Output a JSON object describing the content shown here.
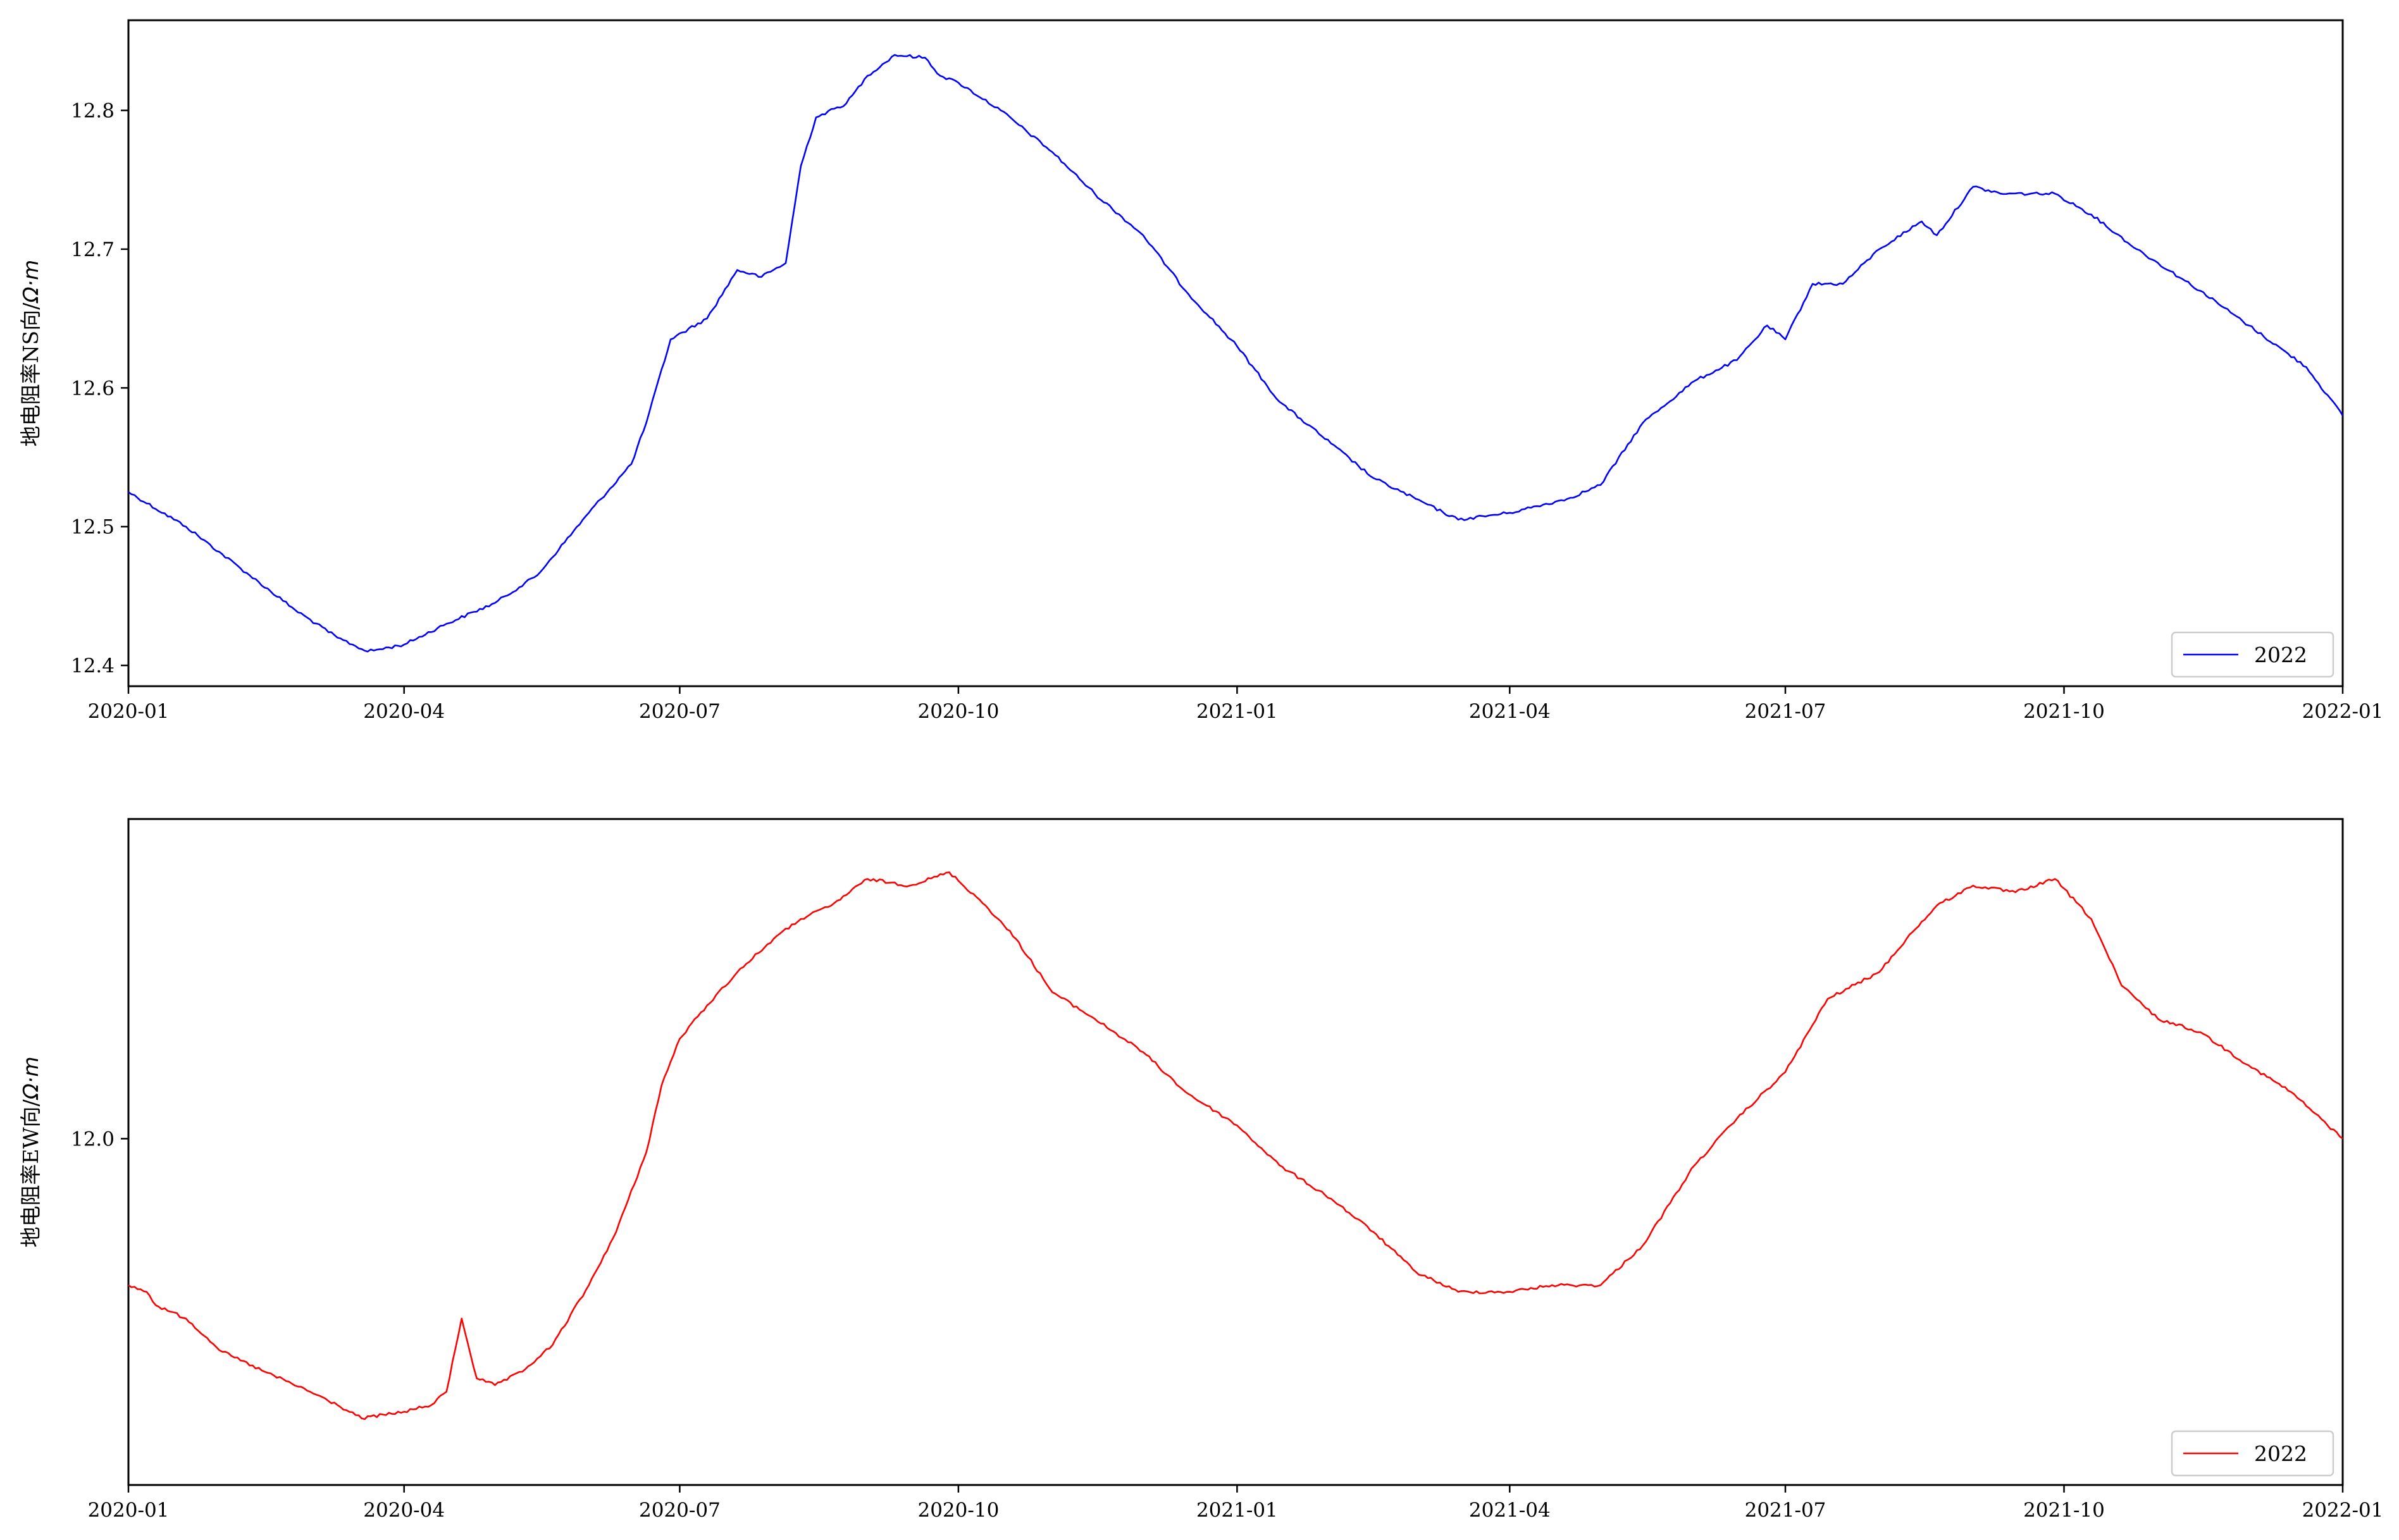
{
  "chart_data": [
    {
      "type": "line",
      "ylabel_text": "地电阻率NS向/",
      "ylabel_unit": "Ω·m",
      "x_ticks": [
        "2020-01",
        "2020-04",
        "2020-07",
        "2020-10",
        "2021-01",
        "2021-04",
        "2021-07",
        "2021-10",
        "2022-01"
      ],
      "y_ticks": [
        "12.4",
        "12.5",
        "12.6",
        "12.7",
        "12.8"
      ],
      "ylim": [
        12.385,
        12.865
      ],
      "legend": {
        "label": "2022",
        "position": "lower-right"
      },
      "series": [
        {
          "name": "2022",
          "color": "#0000ff",
          "x": [
            "2020-01-01",
            "2020-01-20",
            "2020-02-10",
            "2020-02-25",
            "2020-03-10",
            "2020-03-20",
            "2020-04-01",
            "2020-04-15",
            "2020-05-01",
            "2020-05-15",
            "2020-06-01",
            "2020-06-15",
            "2020-06-20",
            "2020-06-28",
            "2020-07-10",
            "2020-07-20",
            "2020-07-28",
            "2020-08-05",
            "2020-08-10",
            "2020-08-15",
            "2020-08-25",
            "2020-09-01",
            "2020-09-10",
            "2020-09-20",
            "2020-09-25",
            "2020-10-01",
            "2020-10-15",
            "2020-11-01",
            "2020-11-15",
            "2020-12-01",
            "2020-12-15",
            "2021-01-01",
            "2021-01-15",
            "2021-02-01",
            "2021-02-15",
            "2021-03-01",
            "2021-03-15",
            "2021-04-01",
            "2021-04-20",
            "2021-05-01",
            "2021-05-15",
            "2021-06-01",
            "2021-06-15",
            "2021-06-25",
            "2021-07-01",
            "2021-07-10",
            "2021-07-20",
            "2021-08-01",
            "2021-08-15",
            "2021-08-20",
            "2021-09-01",
            "2021-09-10",
            "2021-09-20",
            "2021-09-28",
            "2021-10-10",
            "2021-10-25",
            "2021-11-15",
            "2021-12-01",
            "2021-12-20",
            "2022-01-01"
          ],
          "y": [
            12.525,
            12.5,
            12.465,
            12.44,
            12.42,
            12.41,
            12.415,
            12.43,
            12.445,
            12.465,
            12.51,
            12.545,
            12.575,
            12.635,
            12.65,
            12.685,
            12.68,
            12.69,
            12.76,
            12.795,
            12.805,
            12.825,
            12.84,
            12.838,
            12.825,
            12.82,
            12.8,
            12.77,
            12.74,
            12.71,
            12.67,
            12.63,
            12.59,
            12.56,
            12.535,
            12.52,
            12.505,
            12.51,
            12.52,
            12.53,
            12.575,
            12.605,
            12.62,
            12.645,
            12.635,
            12.675,
            12.675,
            12.7,
            12.72,
            12.71,
            12.745,
            12.74,
            12.74,
            12.74,
            12.725,
            12.7,
            12.67,
            12.645,
            12.615,
            12.58
          ]
        }
      ]
    },
    {
      "type": "line",
      "ylabel_text": "地电阻率EW向/",
      "ylabel_unit": "Ω·m",
      "x_ticks": [
        "2020-01",
        "2020-04",
        "2020-07",
        "2020-10",
        "2021-01",
        "2021-04",
        "2021-07",
        "2021-10",
        "2022-01"
      ],
      "y_ticks": [
        "12.0"
      ],
      "ylim": [
        11.74,
        12.24
      ],
      "legend": {
        "label": "2022",
        "position": "lower-right"
      },
      "series": [
        {
          "name": "2022",
          "color": "#ff0000",
          "x": [
            "2020-01-01",
            "2020-01-07",
            "2020-01-10",
            "2020-01-20",
            "2020-02-01",
            "2020-02-15",
            "2020-03-01",
            "2020-03-10",
            "2020-03-18",
            "2020-04-01",
            "2020-04-10",
            "2020-04-15",
            "2020-04-20",
            "2020-04-25",
            "2020-05-01",
            "2020-05-10",
            "2020-05-20",
            "2020-06-01",
            "2020-06-10",
            "2020-06-20",
            "2020-06-25",
            "2020-07-01",
            "2020-07-10",
            "2020-07-20",
            "2020-08-01",
            "2020-08-10",
            "2020-08-20",
            "2020-09-01",
            "2020-09-15",
            "2020-09-28",
            "2020-10-10",
            "2020-10-20",
            "2020-11-01",
            "2020-11-15",
            "2020-12-01",
            "2020-12-15",
            "2021-01-01",
            "2021-01-15",
            "2021-02-01",
            "2021-02-15",
            "2021-03-01",
            "2021-03-15",
            "2021-04-01",
            "2021-04-15",
            "2021-05-01",
            "2021-05-15",
            "2021-06-01",
            "2021-06-15",
            "2021-07-01",
            "2021-07-15",
            "2021-08-01",
            "2021-08-10",
            "2021-08-20",
            "2021-09-01",
            "2021-09-15",
            "2021-09-28",
            "2021-10-10",
            "2021-10-20",
            "2021-11-01",
            "2021-11-15",
            "2021-12-01",
            "2021-12-15",
            "2022-01-01"
          ],
          "y": [
            11.89,
            11.885,
            11.875,
            11.865,
            11.84,
            11.825,
            11.81,
            11.8,
            11.79,
            11.795,
            11.8,
            11.81,
            11.865,
            11.82,
            11.815,
            11.825,
            11.845,
            11.89,
            11.93,
            11.99,
            12.04,
            12.075,
            12.1,
            12.125,
            12.15,
            12.165,
            12.175,
            12.195,
            12.19,
            12.2,
            12.175,
            12.15,
            12.11,
            12.09,
            12.065,
            12.035,
            12.01,
            11.98,
            11.955,
            11.93,
            11.9,
            11.885,
            11.885,
            11.89,
            11.89,
            11.92,
            11.98,
            12.015,
            12.05,
            12.105,
            12.125,
            12.15,
            12.175,
            12.19,
            12.185,
            12.195,
            12.165,
            12.115,
            12.09,
            12.08,
            12.055,
            12.035,
            12.0
          ]
        }
      ]
    }
  ]
}
